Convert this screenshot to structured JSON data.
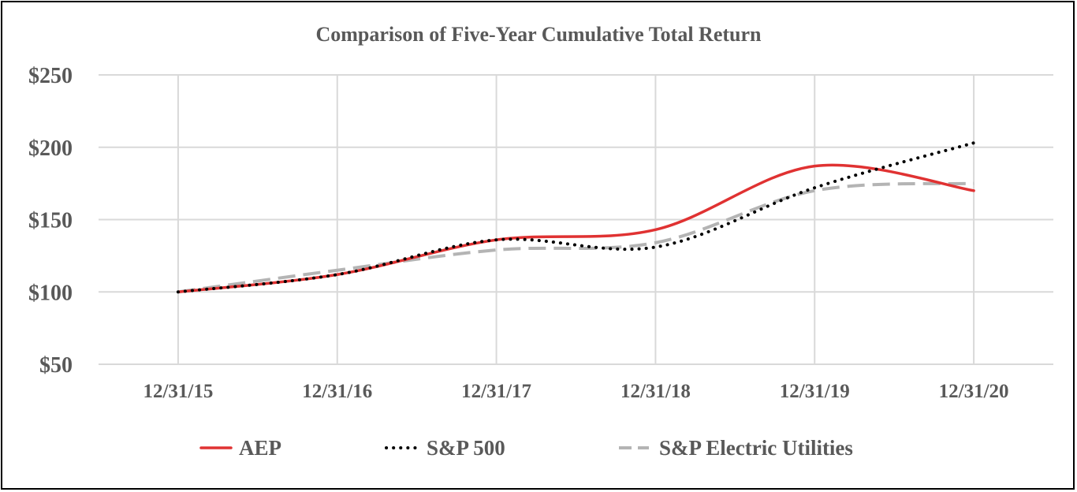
{
  "chart_data": {
    "type": "line",
    "title": "Comparison of Five-Year Cumulative Total Return",
    "xlabel": "",
    "ylabel": "",
    "categories": [
      "12/31/15",
      "12/31/16",
      "12/31/17",
      "12/31/18",
      "12/31/19",
      "12/31/20"
    ],
    "ylim": [
      50,
      250
    ],
    "yticks": [
      50,
      100,
      150,
      200,
      250
    ],
    "ytick_labels": [
      "$50",
      "$100",
      "$150",
      "$200",
      "$250"
    ],
    "grid": true,
    "legend_position": "bottom",
    "series": [
      {
        "name": "AEP",
        "values": [
          100,
          112,
          136,
          143,
          187,
          170
        ],
        "color": "#e03232",
        "style": "solid"
      },
      {
        "name": "S&P 500",
        "values": [
          100,
          112,
          136,
          131,
          172,
          203
        ],
        "color": "#000000",
        "style": "dotted"
      },
      {
        "name": "S&P Electric Utilities",
        "values": [
          100,
          115,
          129,
          134,
          170,
          175
        ],
        "color": "#b4b4b4",
        "style": "dashed"
      }
    ]
  }
}
